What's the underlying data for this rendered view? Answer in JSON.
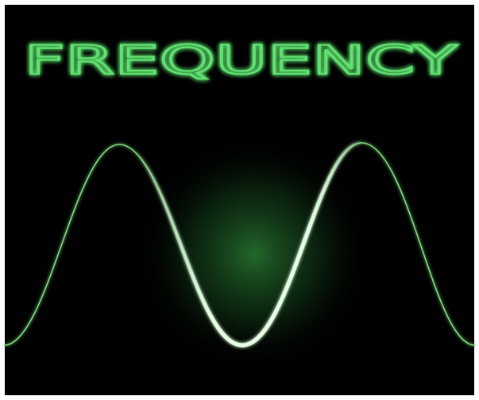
{
  "title": "FREQUENCY"
}
